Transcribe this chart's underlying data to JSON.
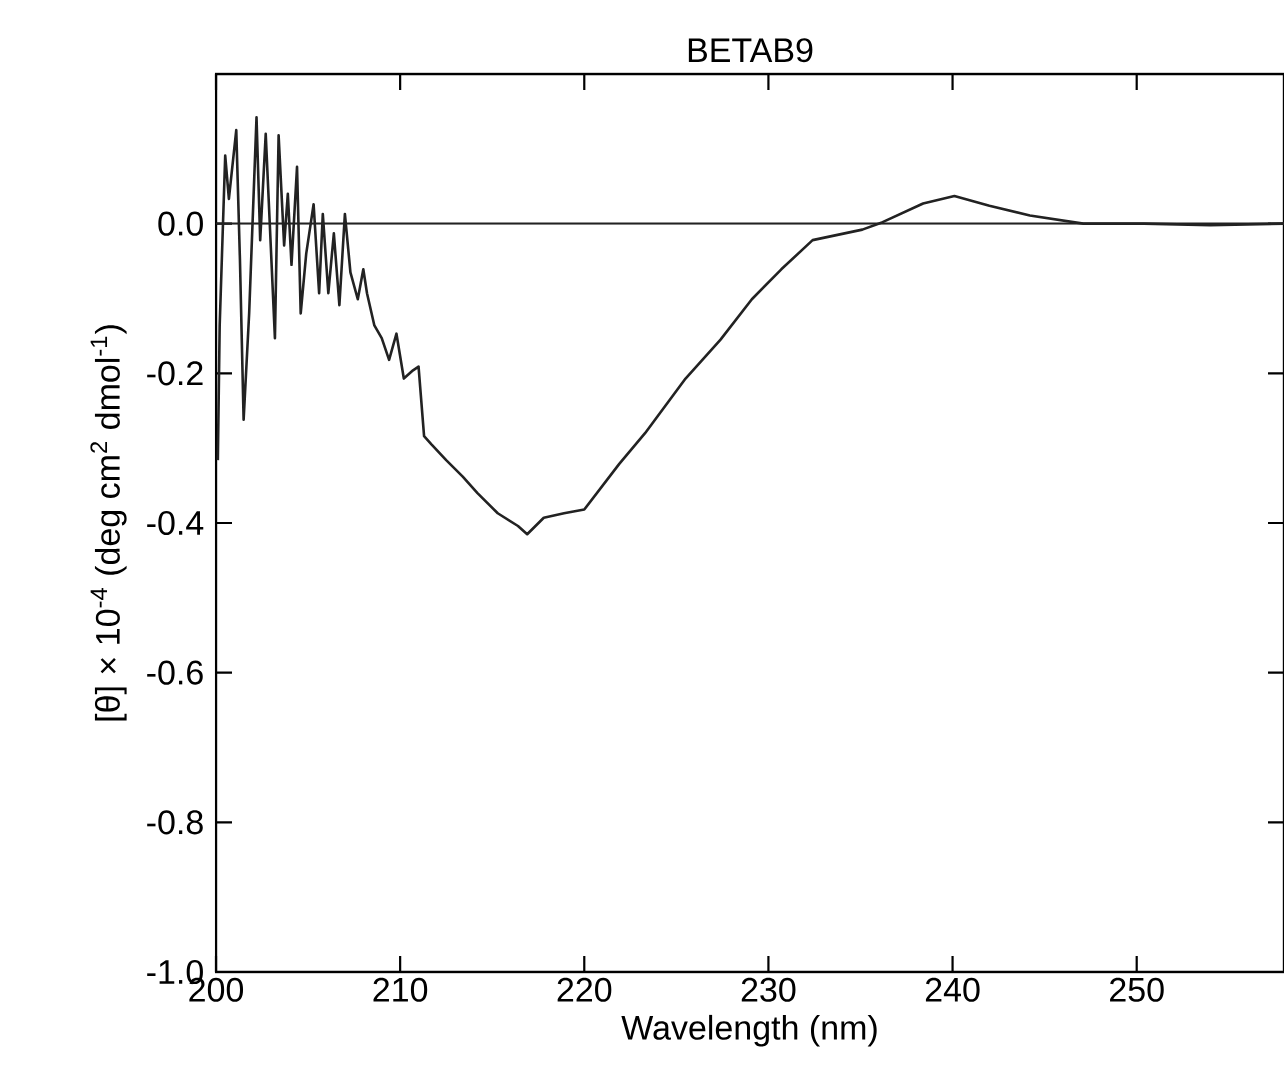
{
  "chart_data": {
    "type": "line",
    "title": "BETAB9",
    "xlabel": "Wavelength (nm)",
    "ylabel": "[θ] × 10$^{-4}$ (deg cm$^{2}$ dmol$^{-1}$)",
    "xlim": [
      200,
      258.0
    ],
    "ylim": [
      -1.0,
      0.2
    ],
    "xticks": [
      200,
      210,
      220,
      230,
      240,
      250
    ],
    "yticks": [
      {
        "value": 0,
        "label": "0.0"
      },
      {
        "value": -0.2,
        "label": "-0.2"
      },
      {
        "value": -0.4,
        "label": "-0.4"
      },
      {
        "value": -0.6,
        "label": "-0.6"
      },
      {
        "value": -0.8,
        "label": "-0.8"
      },
      {
        "value": -1.0,
        "label": "-1.0"
      }
    ],
    "ref_lines": [
      {
        "axis": "y",
        "value": 0,
        "color": "#222222"
      }
    ],
    "series": [
      {
        "color": "#222222",
        "x": [
          200.1,
          200.2,
          200.5,
          200.7,
          201.1,
          201.3,
          201.5,
          201.8,
          202.2,
          202.4,
          202.7,
          203.2,
          203.4,
          203.7,
          203.9,
          204.1,
          204.4,
          204.6,
          204.9,
          205.3,
          205.6,
          205.8,
          206.1,
          206.4,
          206.7,
          207.0,
          207.3,
          207.7,
          208.0,
          208.2,
          208.6,
          209.0,
          209.4,
          209.8,
          210.2,
          210.7,
          211.0,
          211.3,
          211.7,
          212.5,
          213.4,
          214.2,
          215.3,
          216.4,
          216.9,
          217.8,
          218.9,
          220.0,
          221.9,
          223.3,
          225.5,
          227.4,
          229.1,
          230.7,
          232.4,
          235.1,
          236.2,
          238.4,
          240.1,
          242.0,
          244.2,
          247.1,
          250.4,
          254.0,
          258.0
        ],
        "values": [
          -0.316,
          -0.136,
          0.091,
          0.033,
          0.125,
          -0.048,
          -0.262,
          -0.12,
          0.142,
          -0.022,
          0.12,
          -0.153,
          0.118,
          -0.029,
          0.04,
          -0.055,
          0.076,
          -0.12,
          -0.04,
          0.026,
          -0.093,
          0.013,
          -0.093,
          -0.013,
          -0.109,
          0.013,
          -0.065,
          -0.101,
          -0.061,
          -0.093,
          -0.136,
          -0.153,
          -0.182,
          -0.147,
          -0.207,
          -0.196,
          -0.191,
          -0.284,
          -0.295,
          -0.316,
          -0.338,
          -0.36,
          -0.387,
          -0.404,
          -0.415,
          -0.393,
          -0.387,
          -0.382,
          -0.321,
          -0.28,
          -0.207,
          -0.155,
          -0.101,
          -0.061,
          -0.022,
          -0.008,
          0.002,
          0.027,
          0.037,
          0.024,
          0.011,
          0.0,
          0.0,
          -0.002,
          0.0
        ]
      }
    ]
  }
}
